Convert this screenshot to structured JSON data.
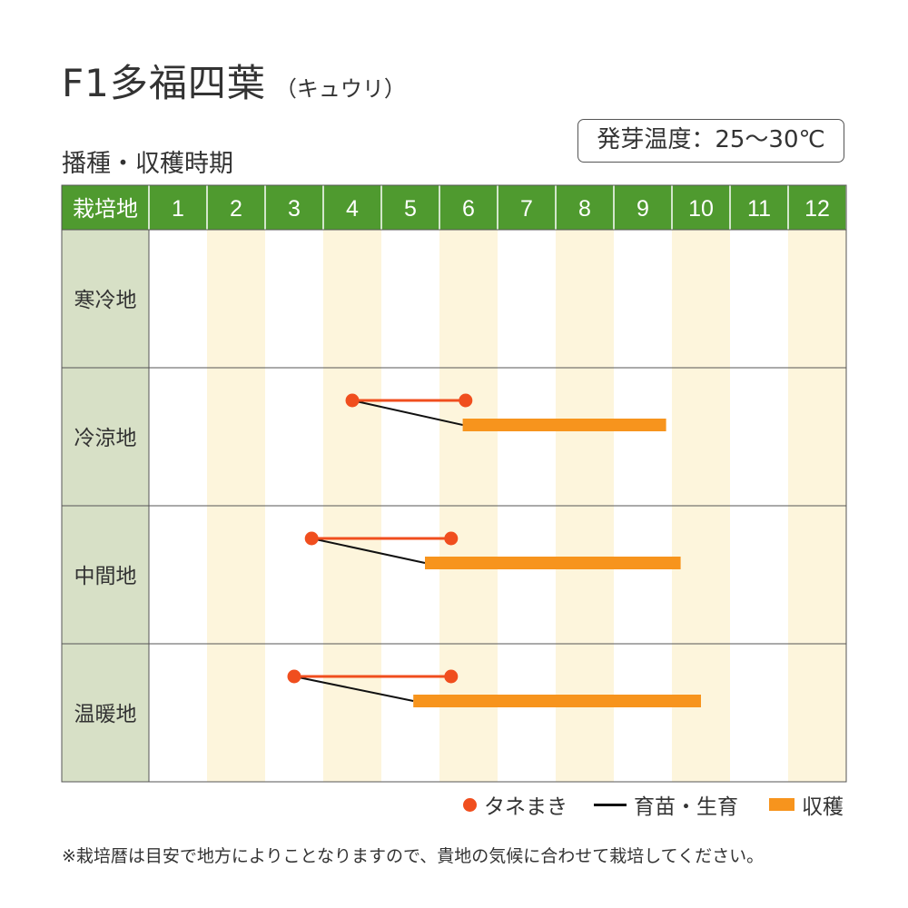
{
  "header": {
    "title": "F1多福四葉",
    "title_sub": "（キュウリ）",
    "subtitle": "播種・収穫時期",
    "temperature": "発芽温度：25～30℃"
  },
  "colors": {
    "header_green": "#4f9a2f",
    "row_label_bg": "#d7e0c6",
    "stripe": "#fdf5dc",
    "sowing": "#f04e1e",
    "growing": "#111111",
    "harvest": "#f7941d"
  },
  "chart_data": {
    "type": "table",
    "corner_label": "栽培地",
    "months": [
      "1",
      "2",
      "3",
      "4",
      "5",
      "6",
      "7",
      "8",
      "9",
      "10",
      "11",
      "12"
    ],
    "regions": [
      {
        "name": "寒冷地",
        "sowing": null,
        "harvest": null
      },
      {
        "name": "冷涼地",
        "sowing": [
          4.5,
          6.45
        ],
        "harvest": [
          6.4,
          9.9
        ]
      },
      {
        "name": "中間地",
        "sowing": [
          3.8,
          6.2
        ],
        "harvest": [
          5.75,
          10.15
        ]
      },
      {
        "name": "温暖地",
        "sowing": [
          3.5,
          6.2
        ],
        "harvest": [
          5.55,
          10.5
        ]
      }
    ],
    "x_unit": "month"
  },
  "legend": {
    "sowing": "タネまき",
    "growing": "育苗・生育",
    "harvest": "収穫"
  },
  "note": "※栽培暦は目安で地方によりことなりますので、貴地の気候に合わせて栽培してください。"
}
